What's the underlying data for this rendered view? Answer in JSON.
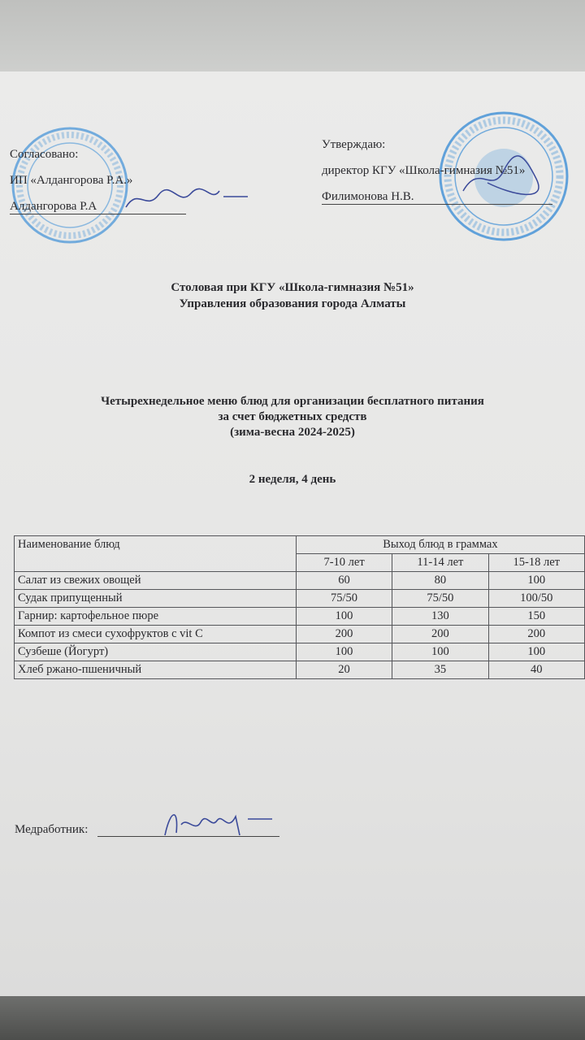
{
  "approval_left": {
    "label": "Согласовано:",
    "org": "ИП «Алдангорова Р.А.»",
    "name": "Алдангорова Р.А"
  },
  "approval_right": {
    "label": "Утверждаю:",
    "position": "директор КГУ «Школа-гимназия №51»",
    "name": "Филимонова Н.В."
  },
  "header": {
    "line1": "Столовая при КГУ «Школа-гимназия №51»",
    "line2": "Управления образования города Алматы"
  },
  "title": {
    "line1": "Четырехнедельное меню блюд для организации бесплатного питания",
    "line2": "за счет бюджетных средств",
    "line3": "(зима-весна 2024-2025)"
  },
  "day": "2 неделя, 4 день",
  "table": {
    "col_name": "Наименование блюд",
    "col_group": "Выход блюд в граммах",
    "age_groups": [
      "7-10 лет",
      "11-14 лет",
      "15-18 лет"
    ],
    "rows": [
      {
        "name": "Салат из свежих овощей",
        "values": [
          "60",
          "80",
          "100"
        ]
      },
      {
        "name": "Судак припущенный",
        "values": [
          "75/50",
          "75/50",
          "100/50"
        ]
      },
      {
        "name": "Гарнир: картофельное пюре",
        "values": [
          "100",
          "130",
          "150"
        ]
      },
      {
        "name": "Компот из смеси сухофруктов с vit C",
        "values": [
          "200",
          "200",
          "200"
        ]
      },
      {
        "name": "Сузбеше (Йогурт)",
        "values": [
          "100",
          "100",
          "100"
        ]
      },
      {
        "name": "Хлеб ржано-пшеничный",
        "values": [
          "20",
          "35",
          "40"
        ]
      }
    ]
  },
  "footer": {
    "label": "Медработник:"
  },
  "colors": {
    "stamp": "#3d8fd6",
    "ink": "#2a2a2e",
    "signature": "#3b4a9a"
  }
}
